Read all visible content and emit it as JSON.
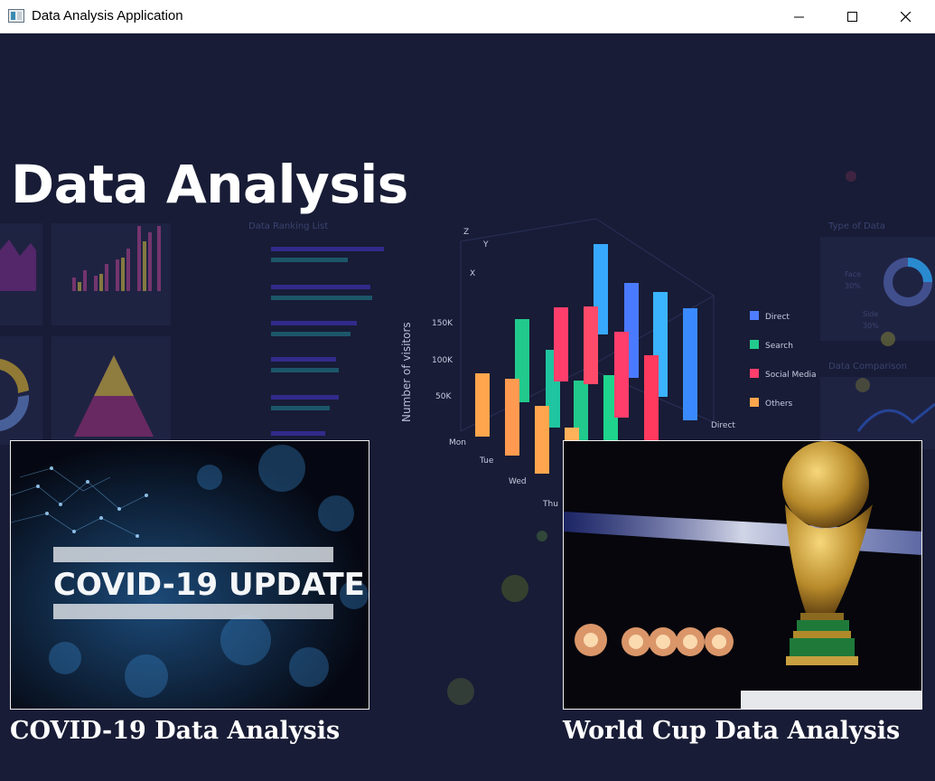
{
  "window": {
    "title": "Data Analysis Application"
  },
  "main": {
    "title": "Data Analysis"
  },
  "cards": [
    {
      "image_text": "COVID-19 UPDATE",
      "label": "COVID-19 Data Analysis"
    },
    {
      "label": "World Cup Data Analysis"
    }
  ],
  "background": {
    "ranking_title": "Data Ranking List",
    "type_title": "Type of Data",
    "comparison_title": "Data Comparison",
    "y_axis_label": "Number of visitors",
    "y_ticks": [
      "150K",
      "100K",
      "50K"
    ],
    "days": [
      "Mon",
      "Tue",
      "Wed",
      "Thu"
    ],
    "direct_axis": "Direct",
    "axes": {
      "z": "Z",
      "y": "Y",
      "x": "X"
    },
    "legend": [
      "Direct",
      "Search",
      "Social Media",
      "Others"
    ],
    "pct_face": "Face",
    "pct_face_val": "30%",
    "pct_side": "Side",
    "pct_side_val": "30%"
  },
  "colors": {
    "background": "#181c36",
    "direct": "#4f7cff",
    "search": "#22c98c",
    "social": "#ff3e6c",
    "others": "#ffa54d"
  }
}
